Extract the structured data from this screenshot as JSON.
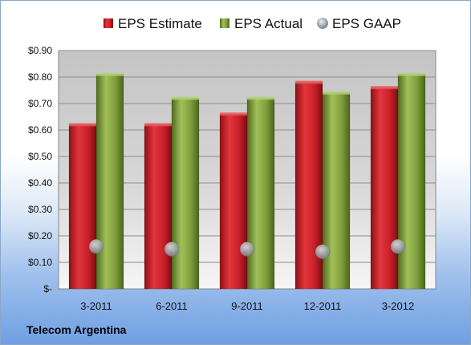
{
  "chart_data": {
    "type": "bar",
    "categories": [
      "3-2011",
      "6-2011",
      "9-2011",
      "12-2011",
      "3-2012"
    ],
    "series": [
      {
        "name": "EPS Estimate",
        "values": [
          0.62,
          0.62,
          0.66,
          0.78,
          0.76
        ],
        "color": "#c0202a",
        "kind": "bar"
      },
      {
        "name": "EPS Actual",
        "values": [
          0.81,
          0.72,
          0.72,
          0.74,
          0.81
        ],
        "color": "#7a9a3a",
        "kind": "bar"
      },
      {
        "name": "EPS GAAP",
        "values": [
          0.16,
          0.15,
          0.15,
          0.14,
          0.16
        ],
        "color": "#9aa4b0",
        "kind": "marker"
      }
    ],
    "yticks": [
      "$-",
      "$0.10",
      "$0.20",
      "$0.30",
      "$0.40",
      "$0.50",
      "$0.60",
      "$0.70",
      "$0.80",
      "$0.90"
    ],
    "ylim": [
      0,
      0.9
    ],
    "grid": true,
    "legend_position": "top"
  },
  "footer": {
    "company": "Telecom Argentina"
  }
}
